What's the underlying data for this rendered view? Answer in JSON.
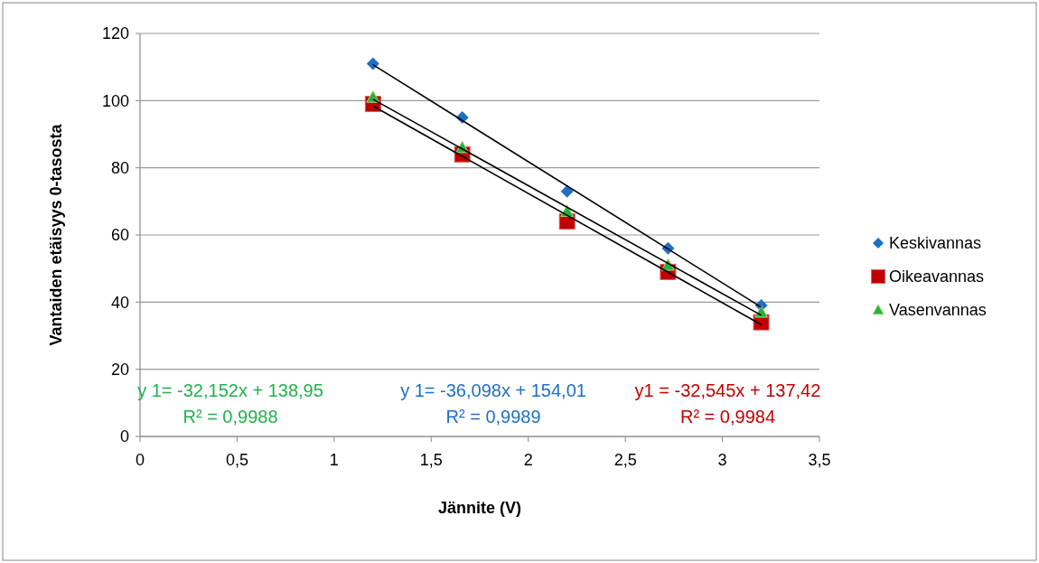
{
  "chart_data": {
    "type": "scatter",
    "xlabel": "Jännite (V)",
    "ylabel": "Vantaiden etäisyys 0-tasosta",
    "xlim": [
      0,
      3.5
    ],
    "xticks": [
      0,
      {
        "value": 0.5,
        "label": "0,5"
      },
      1,
      {
        "value": 1.5,
        "label": "1,5"
      },
      2,
      {
        "value": 2.5,
        "label": "2,5"
      },
      3,
      {
        "value": 3.5,
        "label": "3,5"
      }
    ],
    "ylim": [
      0,
      120
    ],
    "yticks": [
      0,
      20,
      40,
      60,
      80,
      100,
      120
    ],
    "grid": "y",
    "legend": "right",
    "series": [
      {
        "name": "Keskivannas",
        "color": "#1f6fc5",
        "marker": "diamond",
        "x": [
          1.2,
          1.66,
          2.2,
          2.72,
          3.2
        ],
        "values": [
          111,
          95,
          73,
          56,
          39
        ]
      },
      {
        "name": "Oikeavannas",
        "color": "#c00000",
        "marker": "square",
        "x": [
          1.2,
          1.66,
          2.2,
          2.72,
          3.2
        ],
        "values": [
          99,
          84,
          64,
          49,
          34
        ]
      },
      {
        "name": "Vasenvannas",
        "color": "#22b14c",
        "marker": "triangle",
        "x": [
          1.2,
          1.66,
          2.2,
          2.72,
          3.2
        ],
        "values": [
          101,
          86,
          67,
          51,
          37
        ]
      },
      {
        "type": "line",
        "color": "#000000",
        "marker": "none",
        "x": [
          1.2,
          3.2
        ],
        "values": [
          110.7,
          38.5
        ]
      },
      {
        "type": "line",
        "color": "#000000",
        "marker": "none",
        "x": [
          1.2,
          3.2
        ],
        "values": [
          98.4,
          33.3
        ]
      },
      {
        "type": "line",
        "color": "#000000",
        "marker": "none",
        "x": [
          1.2,
          3.2
        ],
        "values": [
          100.4,
          36.1
        ]
      }
    ],
    "annotations": [
      "y 1= -32,152x + 138,95\nR² = 0,9988",
      "y 1= -36,098x + 154,01\nR² = 0,9989",
      "y1 = -32,545x + 137,42\nR² = 0,9984"
    ]
  }
}
